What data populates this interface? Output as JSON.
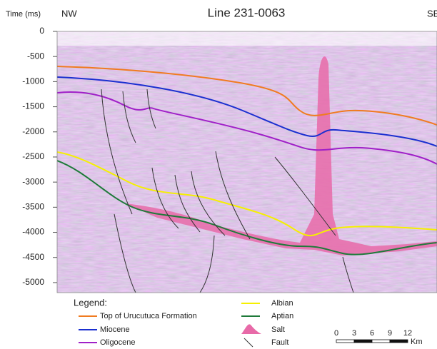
{
  "header": {
    "title": "Line 231-0063",
    "axis_label": "Time (ms)",
    "left": "NW",
    "right": "SE"
  },
  "axis": {
    "range": [
      0,
      -5200
    ],
    "ticks": [
      0,
      -500,
      -1000,
      -1500,
      -2000,
      -2500,
      -3000,
      -3500,
      -4000,
      -4500,
      -5000
    ]
  },
  "legend": {
    "title": "Legend:",
    "items": [
      {
        "label": "Top of Urucutuca Formation",
        "color": "#f07b20",
        "kind": "line"
      },
      {
        "label": "Miocene",
        "color": "#1a2fd0",
        "kind": "line"
      },
      {
        "label": "Oligocene",
        "color": "#a020c8",
        "kind": "line"
      },
      {
        "label": "Albian",
        "color": "#f5f000",
        "kind": "line"
      },
      {
        "label": "Aptian",
        "color": "#1e7a3a",
        "kind": "line"
      },
      {
        "label": "Salt",
        "color": "#e86aa8",
        "kind": "blob"
      },
      {
        "label": "Fault",
        "color": "#333333",
        "kind": "curve"
      }
    ]
  },
  "scale_bar": {
    "ticks": [
      "0",
      "3",
      "6",
      "9",
      "12"
    ],
    "unit": "Km"
  }
}
